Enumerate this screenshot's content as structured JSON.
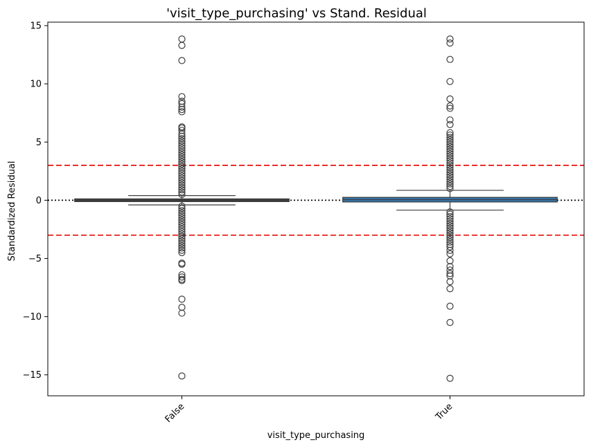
{
  "chart_data": {
    "type": "box",
    "title": "'visit_type_purchasing' vs Stand. Residual",
    "xlabel": "visit_type_purchasing",
    "ylabel": "Standardized Residual",
    "categories": [
      "False",
      "True"
    ],
    "ylim": [
      -16.8,
      15.3
    ],
    "yticks": [
      -15,
      -10,
      -5,
      0,
      5,
      10,
      15
    ],
    "ytick_labels": [
      "−15",
      "−10",
      "−5",
      "0",
      "5",
      "10",
      "15"
    ],
    "reference_lines": [
      {
        "y": 3,
        "style": "dashed",
        "color": "#e8201a"
      },
      {
        "y": -3,
        "style": "dashed",
        "color": "#e8201a"
      },
      {
        "y": 0,
        "style": "dotted",
        "color": "#000000"
      }
    ],
    "boxes": [
      {
        "category": "False",
        "q1": -0.02,
        "median": 0.0,
        "q3": 0.02,
        "whisker_low": -0.4,
        "whisker_high": 0.4,
        "fill": "#3a3a3a",
        "outliers": [
          13.85,
          13.3,
          12.0,
          8.9,
          8.5,
          8.3,
          8.0,
          7.8,
          7.6,
          6.3,
          6.2,
          6.0,
          5.7,
          5.5,
          5.3,
          5.1,
          4.9,
          4.7,
          4.5,
          4.3,
          4.1,
          3.9,
          3.7,
          3.5,
          3.3,
          3.1,
          2.9,
          2.7,
          2.5,
          2.3,
          2.1,
          1.9,
          1.7,
          1.5,
          1.3,
          1.1,
          0.9,
          0.7,
          0.5,
          -0.5,
          -0.7,
          -0.9,
          -1.1,
          -1.3,
          -1.5,
          -1.7,
          -1.9,
          -2.1,
          -2.3,
          -2.5,
          -2.7,
          -2.9,
          -3.1,
          -3.3,
          -3.5,
          -3.7,
          -3.9,
          -4.1,
          -4.3,
          -4.5,
          -5.4,
          -5.5,
          -6.4,
          -6.6,
          -6.8,
          -6.9,
          -8.5,
          -9.2,
          -9.7,
          -15.1
        ]
      },
      {
        "category": "True",
        "q1": -0.15,
        "median": 0.05,
        "q3": 0.25,
        "whisker_low": -0.85,
        "whisker_high": 0.85,
        "fill": "#3473a8",
        "outliers": [
          13.85,
          13.5,
          12.1,
          10.2,
          8.7,
          8.1,
          7.9,
          6.9,
          6.5,
          5.8,
          5.6,
          5.4,
          5.2,
          5.0,
          4.8,
          4.6,
          4.4,
          4.2,
          4.0,
          3.8,
          3.6,
          3.4,
          3.2,
          3.0,
          2.8,
          2.6,
          2.4,
          2.2,
          2.0,
          1.8,
          1.6,
          1.4,
          1.2,
          1.0,
          -1.0,
          -1.2,
          -1.4,
          -1.6,
          -1.8,
          -2.0,
          -2.2,
          -2.4,
          -2.6,
          -2.8,
          -3.0,
          -3.2,
          -3.4,
          -3.6,
          -3.8,
          -4.0,
          -4.3,
          -4.6,
          -5.2,
          -5.7,
          -6.0,
          -6.3,
          -6.5,
          -7.0,
          -7.6,
          -9.1,
          -10.5,
          -15.3
        ]
      }
    ],
    "grid": false,
    "legend": "none"
  }
}
